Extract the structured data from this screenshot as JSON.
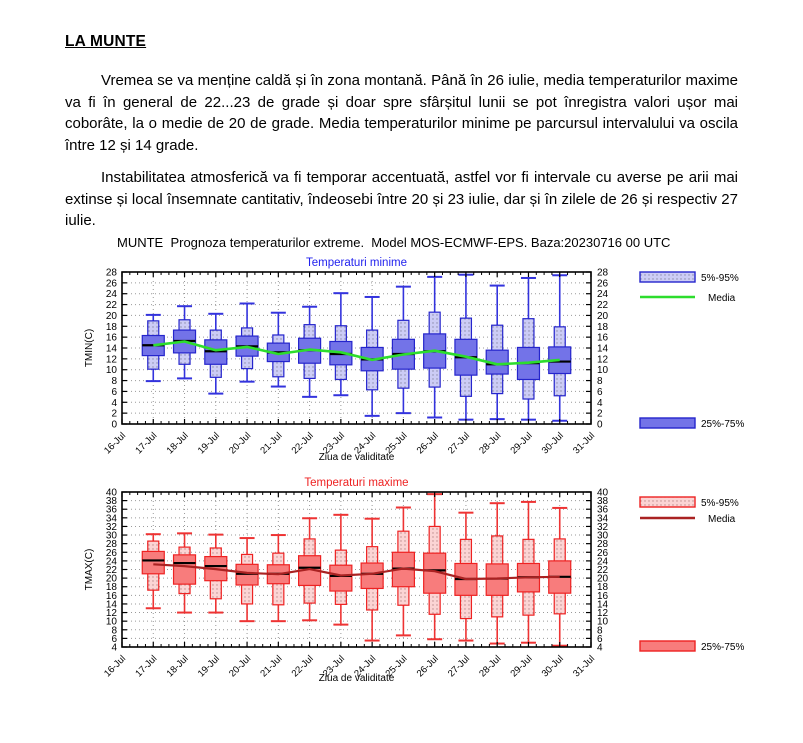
{
  "page": {
    "title": "LA MUNTE",
    "paragraph1": "Vremea se va menține caldă și în zona montană. Până în 26 iulie, media temperaturilor maxime va fi în general de 22...23 de grade și doar spre sfârșitul lunii se pot înregistra valori ușor mai coborâte, la o medie de 20 de grade. Media temperaturilor minime pe parcursul intervalului va oscila între 12 și 14 grade.",
    "paragraph2": "Instabilitatea atmosferică va fi temporar accentuată, astfel vor fi intervale cu averse pe arii mai extinse și local însemnate cantitativ, îndeosebi între 20 și 23 iulie, dar și în zilele de 26 și respectiv 27 iulie.",
    "charts_caption": "MUNTE  Prognoza temperaturilor extreme.  Model MOS-ECMWF-EPS. Baza:20230716 00 UTC"
  },
  "chart_data": [
    {
      "type": "boxplot",
      "title": "Temperaturi minime",
      "title_color": "#2222ee",
      "ylabel": "TMIN(C)",
      "xlabel": "Ziua de validitate",
      "ylim": [
        0,
        28
      ],
      "ytick_step": 2,
      "grid": true,
      "x_ticks": [
        "16-Jul",
        "17-Jul",
        "18-Jul",
        "19-Jul",
        "20-Jul",
        "21-Jul",
        "22-Jul",
        "23-Jul",
        "24-Jul",
        "25-Jul",
        "26-Jul",
        "27-Jul",
        "28-Jul",
        "29-Jul",
        "30-Jul",
        "31-Jul"
      ],
      "legend": {
        "p5_95": "5%-95%",
        "media": "Media",
        "p25_75": "25%-75%",
        "position": "right"
      },
      "colors": {
        "box_fill": "#7373e8",
        "box_border": "#2525cc",
        "light_fill": "#ccccf5",
        "whisker": "#3333dd",
        "median": "#000000",
        "mean_line": "#2ddd2d",
        "pattern_dot": "#8a8aa8"
      },
      "series": [
        {
          "label": "17-Jul",
          "min": 7.9,
          "p5": 10.1,
          "q1": 12.6,
          "median": 14.5,
          "q3": 16.3,
          "p95": 19.0,
          "max": 20.1,
          "mean": 14.5
        },
        {
          "label": "18-Jul",
          "min": 8.4,
          "p5": 11.0,
          "q1": 13.1,
          "median": 15.3,
          "q3": 17.3,
          "p95": 19.2,
          "max": 21.7,
          "mean": 15.2
        },
        {
          "label": "19-Jul",
          "min": 5.6,
          "p5": 8.6,
          "q1": 11.0,
          "median": 13.4,
          "q3": 15.5,
          "p95": 17.3,
          "max": 20.3,
          "mean": 13.6
        },
        {
          "label": "20-Jul",
          "min": 7.8,
          "p5": 10.2,
          "q1": 12.5,
          "median": 14.3,
          "q3": 16.2,
          "p95": 17.7,
          "max": 22.2,
          "mean": 14.2
        },
        {
          "label": "21-Jul",
          "min": 6.9,
          "p5": 8.7,
          "q1": 11.5,
          "median": 13.2,
          "q3": 14.9,
          "p95": 16.4,
          "max": 20.5,
          "mean": 12.9
        },
        {
          "label": "22-Jul",
          "min": 5.0,
          "p5": 8.4,
          "q1": 11.2,
          "median": 13.6,
          "q3": 15.8,
          "p95": 18.3,
          "max": 21.6,
          "mean": 13.7
        },
        {
          "label": "23-Jul",
          "min": 5.3,
          "p5": 8.2,
          "q1": 10.9,
          "median": 12.9,
          "q3": 15.2,
          "p95": 18.1,
          "max": 24.1,
          "mean": 13.2
        },
        {
          "label": "24-Jul",
          "min": 1.5,
          "p5": 6.3,
          "q1": 9.8,
          "median": 11.9,
          "q3": 14.1,
          "p95": 17.3,
          "max": 23.4,
          "mean": 11.8
        },
        {
          "label": "25-Jul",
          "min": 2.0,
          "p5": 6.6,
          "q1": 10.1,
          "median": 12.9,
          "q3": 15.6,
          "p95": 19.1,
          "max": 25.3,
          "mean": 12.8
        },
        {
          "label": "26-Jul",
          "min": 1.2,
          "p5": 6.8,
          "q1": 10.3,
          "median": 13.4,
          "q3": 16.6,
          "p95": 20.6,
          "max": 27.1,
          "mean": 13.5
        },
        {
          "label": "27-Jul",
          "min": 0.8,
          "p5": 5.1,
          "q1": 9.0,
          "median": 12.3,
          "q3": 15.6,
          "p95": 19.5,
          "max": 27.5,
          "mean": 12.4
        },
        {
          "label": "28-Jul",
          "min": 0.9,
          "p5": 5.6,
          "q1": 9.2,
          "median": 11.0,
          "q3": 13.6,
          "p95": 18.2,
          "max": 25.5,
          "mean": 11.0
        },
        {
          "label": "29-Jul",
          "min": 0.8,
          "p5": 4.6,
          "q1": 8.2,
          "median": 11.2,
          "q3": 14.1,
          "p95": 19.4,
          "max": 26.9,
          "mean": 11.3
        },
        {
          "label": "30-Jul",
          "min": 0.6,
          "p5": 5.2,
          "q1": 9.3,
          "median": 11.5,
          "q3": 14.2,
          "p95": 17.9,
          "max": 27.4,
          "mean": 11.8
        }
      ]
    },
    {
      "type": "boxplot",
      "title": "Temperaturi maxime",
      "title_color": "#ee2222",
      "ylabel": "TMAX(C)",
      "xlabel": "Ziua de validitate",
      "ylim": [
        4,
        40
      ],
      "ytick_step": 2,
      "grid": true,
      "x_ticks": [
        "16-Jul",
        "17-Jul",
        "18-Jul",
        "19-Jul",
        "20-Jul",
        "21-Jul",
        "22-Jul",
        "23-Jul",
        "24-Jul",
        "25-Jul",
        "26-Jul",
        "27-Jul",
        "28-Jul",
        "29-Jul",
        "30-Jul",
        "31-Jul"
      ],
      "legend": {
        "p5_95": "5%-95%",
        "media": "Media",
        "p25_75": "25%-75%",
        "position": "right"
      },
      "colors": {
        "box_fill": "#f87c7c",
        "box_border": "#ee2222",
        "light_fill": "#fbd4d4",
        "whisker": "#ee3333",
        "median": "#000000",
        "mean_line": "#aa2222",
        "pattern_dot": "#bb8a8a"
      },
      "series": [
        {
          "label": "17-Jul",
          "min": 13.0,
          "p5": 17.2,
          "q1": 21.0,
          "median": 24.1,
          "q3": 26.2,
          "p95": 28.6,
          "max": 30.2,
          "mean": 23.2
        },
        {
          "label": "18-Jul",
          "min": 12.0,
          "p5": 16.4,
          "q1": 18.6,
          "median": 23.5,
          "q3": 25.4,
          "p95": 27.2,
          "max": 30.4,
          "mean": 22.8
        },
        {
          "label": "19-Jul",
          "min": 12.0,
          "p5": 15.2,
          "q1": 19.4,
          "median": 22.8,
          "q3": 25.0,
          "p95": 27.0,
          "max": 30.1,
          "mean": 22.1
        },
        {
          "label": "20-Jul",
          "min": 10.0,
          "p5": 14.0,
          "q1": 18.4,
          "median": 21.0,
          "q3": 23.2,
          "p95": 25.5,
          "max": 29.3,
          "mean": 21.2
        },
        {
          "label": "21-Jul",
          "min": 10.0,
          "p5": 13.8,
          "q1": 18.7,
          "median": 21.0,
          "q3": 23.1,
          "p95": 25.8,
          "max": 30.0,
          "mean": 20.9
        },
        {
          "label": "22-Jul",
          "min": 10.2,
          "p5": 14.2,
          "q1": 18.3,
          "median": 22.4,
          "q3": 25.2,
          "p95": 29.1,
          "max": 33.9,
          "mean": 22.1
        },
        {
          "label": "23-Jul",
          "min": 9.2,
          "p5": 13.9,
          "q1": 17.0,
          "median": 20.5,
          "q3": 23.0,
          "p95": 26.5,
          "max": 34.7,
          "mean": 20.6
        },
        {
          "label": "24-Jul",
          "min": 5.5,
          "p5": 12.6,
          "q1": 17.6,
          "median": 21.0,
          "q3": 23.5,
          "p95": 27.3,
          "max": 33.8,
          "mean": 21.0
        },
        {
          "label": "25-Jul",
          "min": 6.7,
          "p5": 13.7,
          "q1": 18.0,
          "median": 22.2,
          "q3": 26.0,
          "p95": 30.9,
          "max": 36.4,
          "mean": 22.2
        },
        {
          "label": "26-Jul",
          "min": 5.8,
          "p5": 11.6,
          "q1": 16.5,
          "median": 21.8,
          "q3": 25.8,
          "p95": 32.0,
          "max": 39.5,
          "mean": 21.6
        },
        {
          "label": "27-Jul",
          "min": 5.5,
          "p5": 10.6,
          "q1": 16.0,
          "median": 19.8,
          "q3": 23.4,
          "p95": 29.0,
          "max": 35.2,
          "mean": 19.8
        },
        {
          "label": "28-Jul",
          "min": 4.8,
          "p5": 11.0,
          "q1": 16.0,
          "median": 19.9,
          "q3": 23.3,
          "p95": 29.8,
          "max": 37.4,
          "mean": 19.9
        },
        {
          "label": "29-Jul",
          "min": 5.0,
          "p5": 11.4,
          "q1": 16.8,
          "median": 20.2,
          "q3": 23.4,
          "p95": 29.0,
          "max": 37.7,
          "mean": 20.2
        },
        {
          "label": "30-Jul",
          "min": 4.3,
          "p5": 11.7,
          "q1": 16.5,
          "median": 20.3,
          "q3": 24.0,
          "p95": 29.1,
          "max": 36.3,
          "mean": 20.3
        }
      ]
    }
  ]
}
